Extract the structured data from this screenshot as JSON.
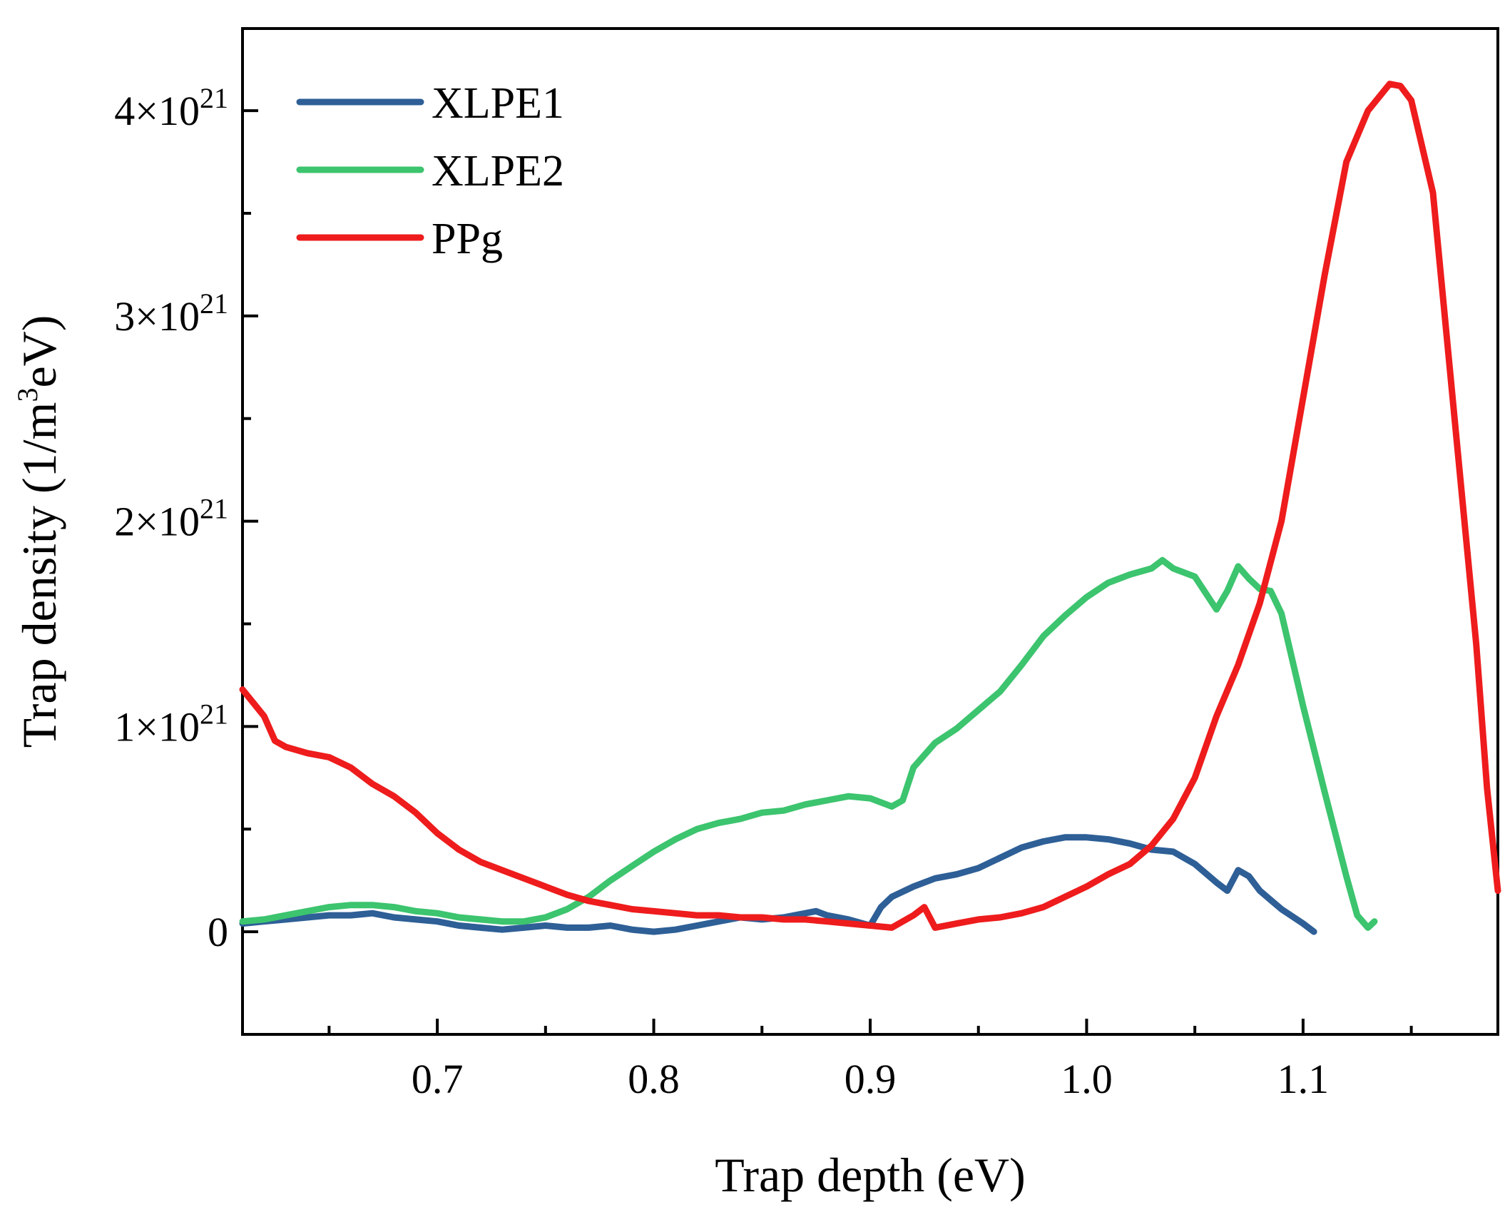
{
  "chart_data": {
    "type": "line",
    "title": "",
    "xlabel": "Trap depth (eV)",
    "ylabel": {
      "prefix": "Trap density (1/m",
      "superscript": "3",
      "suffix": "eV)"
    },
    "xlim": [
      0.61,
      1.19
    ],
    "ylim": [
      -5e+20,
      4.4e+21
    ],
    "x_ticks": [
      {
        "value": 0.7,
        "label": "0.7"
      },
      {
        "value": 0.8,
        "label": "0.8"
      },
      {
        "value": 0.9,
        "label": "0.9"
      },
      {
        "value": 1.0,
        "label": "1.0"
      },
      {
        "value": 1.1,
        "label": "1.1"
      }
    ],
    "x_minor_ticks": [
      0.65,
      0.75,
      0.85,
      0.95,
      1.05,
      1.15
    ],
    "y_ticks": [
      {
        "value": 0,
        "label": "0",
        "exp": ""
      },
      {
        "value": 1e+21,
        "label": "1×10",
        "exp": "21"
      },
      {
        "value": 2e+21,
        "label": "2×10",
        "exp": "21"
      },
      {
        "value": 3e+21,
        "label": "3×10",
        "exp": "21"
      },
      {
        "value": 4e+21,
        "label": "4×10",
        "exp": "21"
      }
    ],
    "y_minor_ticks": [
      5e+20,
      1.5e+21,
      2.5e+21,
      3.5e+21
    ],
    "y_unit": 1e+21,
    "legend_position": "top-left",
    "series": [
      {
        "name": "XLPE1",
        "color": "#2e5f96",
        "points": [
          [
            0.61,
            0.04
          ],
          [
            0.62,
            0.05
          ],
          [
            0.63,
            0.06
          ],
          [
            0.64,
            0.07
          ],
          [
            0.65,
            0.08
          ],
          [
            0.66,
            0.08
          ],
          [
            0.67,
            0.09
          ],
          [
            0.68,
            0.07
          ],
          [
            0.69,
            0.06
          ],
          [
            0.7,
            0.05
          ],
          [
            0.71,
            0.03
          ],
          [
            0.72,
            0.02
          ],
          [
            0.73,
            0.01
          ],
          [
            0.74,
            0.02
          ],
          [
            0.75,
            0.03
          ],
          [
            0.76,
            0.02
          ],
          [
            0.77,
            0.02
          ],
          [
            0.78,
            0.03
          ],
          [
            0.79,
            0.01
          ],
          [
            0.8,
            0.0
          ],
          [
            0.81,
            0.01
          ],
          [
            0.82,
            0.03
          ],
          [
            0.83,
            0.05
          ],
          [
            0.84,
            0.07
          ],
          [
            0.85,
            0.06
          ],
          [
            0.86,
            0.07
          ],
          [
            0.87,
            0.09
          ],
          [
            0.875,
            0.1
          ],
          [
            0.88,
            0.08
          ],
          [
            0.89,
            0.06
          ],
          [
            0.9,
            0.03
          ],
          [
            0.905,
            0.12
          ],
          [
            0.91,
            0.17
          ],
          [
            0.92,
            0.22
          ],
          [
            0.93,
            0.26
          ],
          [
            0.94,
            0.28
          ],
          [
            0.95,
            0.31
          ],
          [
            0.96,
            0.36
          ],
          [
            0.97,
            0.41
          ],
          [
            0.98,
            0.44
          ],
          [
            0.99,
            0.46
          ],
          [
            1.0,
            0.46
          ],
          [
            1.01,
            0.45
          ],
          [
            1.02,
            0.43
          ],
          [
            1.03,
            0.4
          ],
          [
            1.04,
            0.39
          ],
          [
            1.05,
            0.33
          ],
          [
            1.06,
            0.24
          ],
          [
            1.065,
            0.2
          ],
          [
            1.07,
            0.3
          ],
          [
            1.075,
            0.27
          ],
          [
            1.08,
            0.2
          ],
          [
            1.09,
            0.11
          ],
          [
            1.1,
            0.04
          ],
          [
            1.105,
            0.0
          ]
        ]
      },
      {
        "name": "XLPE2",
        "color": "#3cc46e",
        "points": [
          [
            0.61,
            0.05
          ],
          [
            0.62,
            0.06
          ],
          [
            0.63,
            0.08
          ],
          [
            0.64,
            0.1
          ],
          [
            0.65,
            0.12
          ],
          [
            0.66,
            0.13
          ],
          [
            0.67,
            0.13
          ],
          [
            0.68,
            0.12
          ],
          [
            0.69,
            0.1
          ],
          [
            0.7,
            0.09
          ],
          [
            0.71,
            0.07
          ],
          [
            0.72,
            0.06
          ],
          [
            0.73,
            0.05
          ],
          [
            0.74,
            0.05
          ],
          [
            0.75,
            0.07
          ],
          [
            0.76,
            0.11
          ],
          [
            0.77,
            0.17
          ],
          [
            0.78,
            0.25
          ],
          [
            0.79,
            0.32
          ],
          [
            0.8,
            0.39
          ],
          [
            0.81,
            0.45
          ],
          [
            0.82,
            0.5
          ],
          [
            0.83,
            0.53
          ],
          [
            0.84,
            0.55
          ],
          [
            0.85,
            0.58
          ],
          [
            0.86,
            0.59
          ],
          [
            0.87,
            0.62
          ],
          [
            0.88,
            0.64
          ],
          [
            0.89,
            0.66
          ],
          [
            0.9,
            0.65
          ],
          [
            0.91,
            0.61
          ],
          [
            0.915,
            0.64
          ],
          [
            0.92,
            0.8
          ],
          [
            0.93,
            0.92
          ],
          [
            0.94,
            0.99
          ],
          [
            0.95,
            1.08
          ],
          [
            0.96,
            1.17
          ],
          [
            0.97,
            1.3
          ],
          [
            0.98,
            1.44
          ],
          [
            0.99,
            1.54
          ],
          [
            1.0,
            1.63
          ],
          [
            1.01,
            1.7
          ],
          [
            1.02,
            1.74
          ],
          [
            1.03,
            1.77
          ],
          [
            1.035,
            1.81
          ],
          [
            1.04,
            1.77
          ],
          [
            1.05,
            1.73
          ],
          [
            1.06,
            1.57
          ],
          [
            1.065,
            1.66
          ],
          [
            1.07,
            1.78
          ],
          [
            1.075,
            1.72
          ],
          [
            1.08,
            1.67
          ],
          [
            1.085,
            1.66
          ],
          [
            1.09,
            1.55
          ],
          [
            1.1,
            1.1
          ],
          [
            1.11,
            0.68
          ],
          [
            1.12,
            0.27
          ],
          [
            1.125,
            0.08
          ],
          [
            1.13,
            0.02
          ],
          [
            1.133,
            0.05
          ]
        ]
      },
      {
        "name": "PPg",
        "color": "#ee1c1c",
        "points": [
          [
            0.61,
            1.18
          ],
          [
            0.62,
            1.05
          ],
          [
            0.625,
            0.93
          ],
          [
            0.63,
            0.9
          ],
          [
            0.64,
            0.87
          ],
          [
            0.65,
            0.85
          ],
          [
            0.66,
            0.8
          ],
          [
            0.67,
            0.72
          ],
          [
            0.68,
            0.66
          ],
          [
            0.69,
            0.58
          ],
          [
            0.7,
            0.48
          ],
          [
            0.71,
            0.4
          ],
          [
            0.72,
            0.34
          ],
          [
            0.73,
            0.3
          ],
          [
            0.74,
            0.26
          ],
          [
            0.75,
            0.22
          ],
          [
            0.76,
            0.18
          ],
          [
            0.77,
            0.15
          ],
          [
            0.78,
            0.13
          ],
          [
            0.79,
            0.11
          ],
          [
            0.8,
            0.1
          ],
          [
            0.81,
            0.09
          ],
          [
            0.82,
            0.08
          ],
          [
            0.83,
            0.08
          ],
          [
            0.84,
            0.07
          ],
          [
            0.85,
            0.07
          ],
          [
            0.86,
            0.06
          ],
          [
            0.87,
            0.06
          ],
          [
            0.88,
            0.05
          ],
          [
            0.89,
            0.04
          ],
          [
            0.9,
            0.03
          ],
          [
            0.91,
            0.02
          ],
          [
            0.92,
            0.08
          ],
          [
            0.925,
            0.12
          ],
          [
            0.93,
            0.02
          ],
          [
            0.94,
            0.04
          ],
          [
            0.95,
            0.06
          ],
          [
            0.96,
            0.07
          ],
          [
            0.97,
            0.09
          ],
          [
            0.98,
            0.12
          ],
          [
            0.99,
            0.17
          ],
          [
            1.0,
            0.22
          ],
          [
            1.01,
            0.28
          ],
          [
            1.02,
            0.33
          ],
          [
            1.03,
            0.42
          ],
          [
            1.04,
            0.55
          ],
          [
            1.05,
            0.75
          ],
          [
            1.06,
            1.05
          ],
          [
            1.07,
            1.3
          ],
          [
            1.08,
            1.6
          ],
          [
            1.09,
            2.0
          ],
          [
            1.1,
            2.6
          ],
          [
            1.11,
            3.2
          ],
          [
            1.12,
            3.75
          ],
          [
            1.13,
            4.0
          ],
          [
            1.14,
            4.13
          ],
          [
            1.145,
            4.12
          ],
          [
            1.15,
            4.05
          ],
          [
            1.16,
            3.6
          ],
          [
            1.17,
            2.5
          ],
          [
            1.18,
            1.4
          ],
          [
            1.185,
            0.7
          ],
          [
            1.19,
            0.2
          ]
        ]
      }
    ]
  }
}
